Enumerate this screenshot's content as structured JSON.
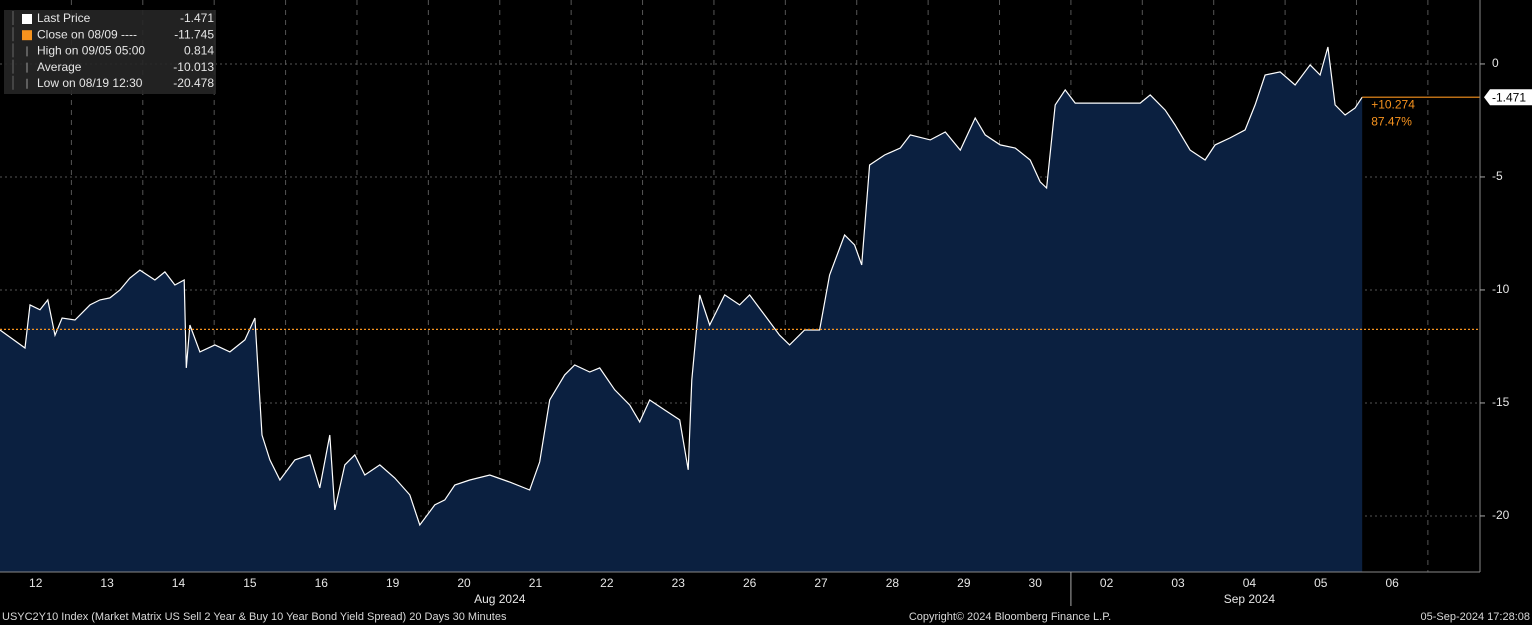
{
  "chart_data": {
    "type": "area",
    "background": "#000000",
    "line_color": "#ffffff",
    "fill_color": "#0b2040",
    "accent_color": "#f7931e",
    "grid": true,
    "x": [
      0,
      0.35,
      0.42,
      0.56,
      0.67,
      0.77,
      0.87,
      1.05,
      1.26,
      1.4,
      1.54,
      1.68,
      1.82,
      1.96,
      2.17,
      2.31,
      2.45,
      2.58,
      2.61,
      2.66,
      2.8,
      3.01,
      3.22,
      3.43,
      3.57,
      3.67,
      3.78,
      3.92,
      4.13,
      4.34,
      4.48,
      4.62,
      4.69,
      4.83,
      4.97,
      5.11,
      5.32,
      5.53,
      5.74,
      5.88,
      6.09,
      6.23,
      6.37,
      6.58,
      6.86,
      7.14,
      7.42,
      7.56,
      7.7,
      7.91,
      8.05,
      8.26,
      8.4,
      8.61,
      8.82,
      8.96,
      9.1,
      9.31,
      9.52,
      9.64,
      9.69,
      9.8,
      9.94,
      10.15,
      10.36,
      10.5,
      10.71,
      10.92,
      11.06,
      11.27,
      11.48,
      11.62,
      11.83,
      11.97,
      12.07,
      12.18,
      12.39,
      12.61,
      12.75,
      13.03,
      13.24,
      13.45,
      13.66,
      13.8,
      14.01,
      14.22,
      14.43,
      14.57,
      14.66,
      14.78,
      14.92,
      15.06,
      15.97,
      16.11,
      16.32,
      16.46,
      16.67,
      16.88,
      17.02,
      17.23,
      17.44,
      17.58,
      17.72,
      17.93,
      18.14,
      18.35,
      18.49,
      18.6,
      18.7,
      18.84,
      18.98,
      19.08
    ],
    "values": [
      -11.77,
      -12.57,
      -10.66,
      -10.88,
      -10.44,
      -12.0,
      -11.24,
      -11.33,
      -10.66,
      -10.44,
      -10.35,
      -10.0,
      -9.47,
      -9.12,
      -9.56,
      -9.2,
      -9.78,
      -9.56,
      -13.45,
      -11.55,
      -12.74,
      -12.43,
      -12.74,
      -12.21,
      -11.24,
      -16.42,
      -17.52,
      -18.41,
      -17.52,
      -17.3,
      -18.76,
      -16.42,
      -19.73,
      -17.74,
      -17.3,
      -18.19,
      -17.74,
      -18.32,
      -19.07,
      -20.4,
      -19.51,
      -19.29,
      -18.63,
      -18.41,
      -18.19,
      -18.5,
      -18.85,
      -17.61,
      -14.87,
      -13.76,
      -13.32,
      -13.63,
      -13.45,
      -14.42,
      -15.09,
      -15.84,
      -14.87,
      -15.31,
      -15.75,
      -17.96,
      -13.98,
      -10.22,
      -11.55,
      -10.22,
      -10.66,
      -10.22,
      -11.11,
      -12.0,
      -12.43,
      -11.77,
      -11.77,
      -9.34,
      -7.57,
      -8.01,
      -8.89,
      -4.47,
      -4.03,
      -3.72,
      -3.14,
      -3.36,
      -3.01,
      -3.81,
      -2.39,
      -3.14,
      -3.58,
      -3.72,
      -4.25,
      -5.22,
      -5.49,
      -1.81,
      -1.15,
      -1.73,
      -1.73,
      -1.37,
      -2.04,
      -2.7,
      -3.81,
      -4.25,
      -3.58,
      -3.27,
      -2.92,
      -1.81,
      -0.49,
      -0.35,
      -0.93,
      -0.04,
      -0.49,
      0.75,
      -1.81,
      -2.26,
      -1.95,
      -1.471
    ],
    "xlim": [
      0,
      20.73
    ],
    "ylim": [
      -22.48,
      2.83
    ],
    "yticks": [
      0,
      -5,
      -10,
      -15,
      -20
    ],
    "xticks": [
      {
        "value": 0.5,
        "label": "12"
      },
      {
        "value": 1.5,
        "label": "13"
      },
      {
        "value": 2.5,
        "label": "14"
      },
      {
        "value": 3.5,
        "label": "15"
      },
      {
        "value": 4.5,
        "label": "16"
      },
      {
        "value": 5.5,
        "label": "19"
      },
      {
        "value": 6.5,
        "label": "20"
      },
      {
        "value": 7.5,
        "label": "21"
      },
      {
        "value": 8.5,
        "label": "22"
      },
      {
        "value": 9.5,
        "label": "23"
      },
      {
        "value": 10.5,
        "label": "26"
      },
      {
        "value": 11.5,
        "label": "27"
      },
      {
        "value": 12.5,
        "label": "28"
      },
      {
        "value": 13.5,
        "label": "29"
      },
      {
        "value": 14.5,
        "label": "30"
      },
      {
        "value": 15.5,
        "label": "02"
      },
      {
        "value": 16.5,
        "label": "03"
      },
      {
        "value": 17.5,
        "label": "04"
      },
      {
        "value": 18.5,
        "label": "05"
      },
      {
        "value": 19.5,
        "label": "06"
      }
    ],
    "month_ticks": [
      {
        "value": 7,
        "label": "Aug 2024"
      },
      {
        "value": 17.5,
        "label": "Sep 2024"
      }
    ],
    "legend": [
      {
        "label": "Last Price",
        "value": -1.471,
        "color": "#ffffff"
      },
      {
        "label": "Close on 08/09 ----",
        "value": -11.745,
        "color": "#f7931e"
      },
      {
        "label": "High on 09/05 05:00",
        "value": 0.814
      },
      {
        "label": "Average",
        "value": -10.013
      },
      {
        "label": "Low on 08/19 12:30",
        "value": -20.478
      }
    ],
    "change_label": "+10.274",
    "change_pct": "87.47%",
    "footer_left": "USYC2Y10 Index (Market Matrix US Sell 2 Year & Buy 10 Year Bond Yield Spread) 20 Days 30 Minutes",
    "footer_center": "Copyright© 2024 Bloomberg Finance L.P.",
    "footer_right": "05-Sep-2024 17:28:08"
  }
}
